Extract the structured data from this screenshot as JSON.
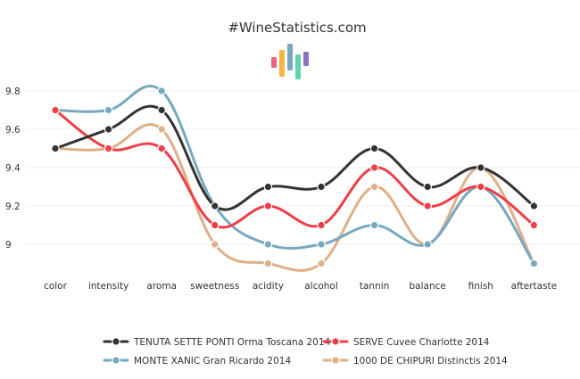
{
  "header": {
    "title": "#WineStatistics.com"
  },
  "logo": {
    "bar_colors": [
      "#f0607a",
      "#f5b342",
      "#7aa6c2",
      "#64d2a8",
      "#8a73c4"
    ]
  },
  "chart_data": {
    "type": "line",
    "title": "#WineStatistics.com",
    "xlabel": "",
    "ylabel": "",
    "categories": [
      "color",
      "intensity",
      "aroma",
      "sweetness",
      "acidity",
      "alcohol",
      "tannin",
      "balance",
      "finish",
      "aftertaste"
    ],
    "ylim": [
      8.8,
      9.9
    ],
    "yticks": [
      9,
      9.2,
      9.4,
      9.6,
      9.8
    ],
    "ytick_labels": [
      "9",
      "9.2",
      "9.4",
      "9.6",
      "9.8"
    ],
    "grid": true,
    "legend_position": "bottom",
    "series": [
      {
        "name": "TENUTA SETTE PONTI Orma Toscana 2014",
        "color": "#333333",
        "values": [
          9.5,
          9.6,
          9.7,
          9.2,
          9.3,
          9.3,
          9.5,
          9.3,
          9.4,
          9.2
        ]
      },
      {
        "name": "SERVE Cuvee Charlotte 2014",
        "color": "#ef3e47",
        "values": [
          9.7,
          9.5,
          9.5,
          9.1,
          9.2,
          9.1,
          9.4,
          9.2,
          9.3,
          9.1
        ]
      },
      {
        "name": "MONTE XANIC Gran Ricardo 2014",
        "color": "#76a9c0",
        "values": [
          9.7,
          9.7,
          9.8,
          9.2,
          9.0,
          9.0,
          9.1,
          9.0,
          9.3,
          8.9
        ]
      },
      {
        "name": "1000 DE CHIPURI Distinctis 2014",
        "color": "#dfaf87",
        "values": [
          9.5,
          9.5,
          9.6,
          9.0,
          8.9,
          8.9,
          9.3,
          9.0,
          9.4,
          8.9
        ]
      }
    ]
  }
}
